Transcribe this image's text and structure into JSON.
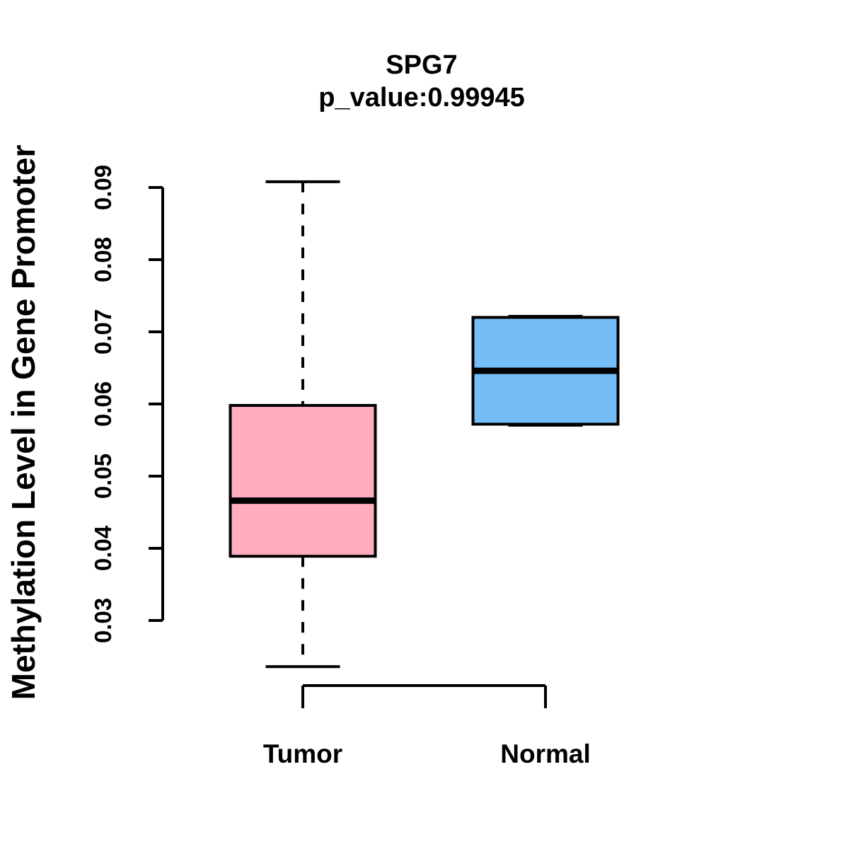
{
  "chart_data": {
    "type": "boxplot",
    "title": "SPG7",
    "subtitle": "p_value:0.99945",
    "ylabel": "Methylation Level in Gene Promoter",
    "xlabel": "",
    "categories": [
      "Tumor",
      "Normal"
    ],
    "ylim": [
      0.03,
      0.09
    ],
    "yticks": [
      0.03,
      0.04,
      0.05,
      0.06,
      0.07,
      0.08,
      0.09
    ],
    "ytick_labels": [
      "0.03",
      "0.04",
      "0.05",
      "0.06",
      "0.07",
      "0.08",
      "0.09"
    ],
    "grid": false,
    "legend_position": "none",
    "series": [
      {
        "name": "Tumor",
        "whisker_low": 0.0236,
        "q1": 0.0389,
        "median": 0.0466,
        "q3": 0.0598,
        "whisker_high": 0.0908,
        "fill_color": "#FFAEC1"
      },
      {
        "name": "Normal",
        "whisker_low": 0.0572,
        "q1": 0.0572,
        "median": 0.0646,
        "q3": 0.072,
        "whisker_high": 0.072,
        "fill_color": "#75BDF6"
      }
    ],
    "colors": {
      "line": "#000000",
      "tumor_fill": "#FFAEC1",
      "normal_fill": "#75BDF6",
      "background": "#FFFFFF"
    }
  }
}
